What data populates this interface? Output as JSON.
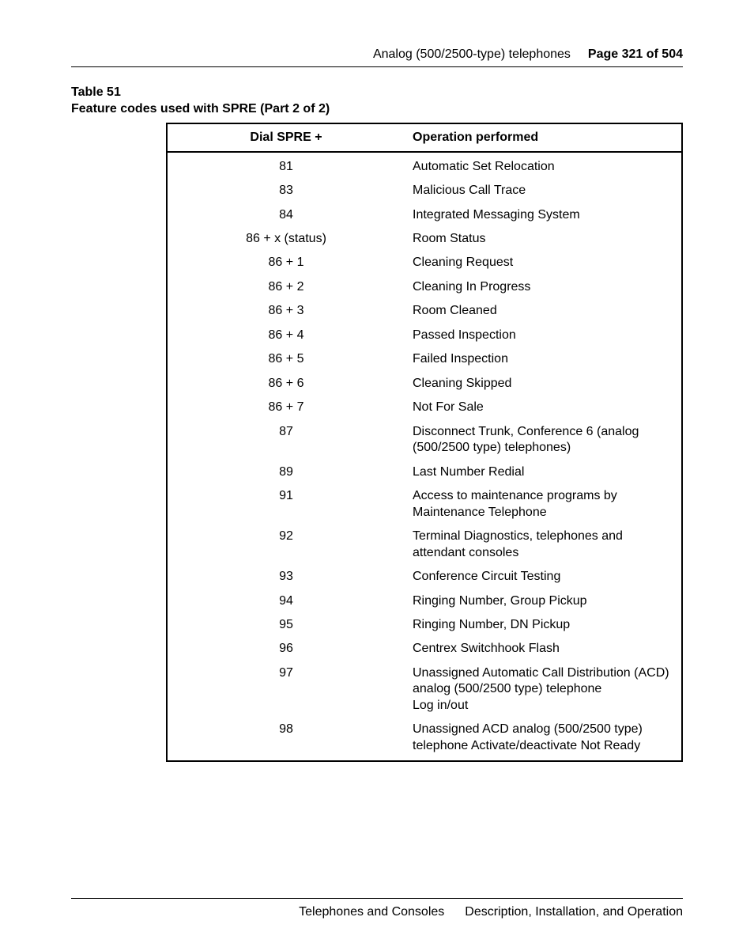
{
  "header": {
    "section_title": "Analog (500/2500-type) telephones",
    "page_label": "Page 321 of 504"
  },
  "caption": {
    "table_number": "Table 51",
    "table_title": "Feature codes used with SPRE (Part 2 of 2)"
  },
  "table": {
    "columns": [
      "Dial SPRE +",
      "Operation performed"
    ],
    "rows": [
      [
        "81",
        "Automatic Set Relocation"
      ],
      [
        "83",
        "Malicious Call Trace"
      ],
      [
        "84",
        "Integrated Messaging System"
      ],
      [
        "86 + x (status)",
        "Room Status"
      ],
      [
        "86 + 1",
        "Cleaning Request"
      ],
      [
        "86 + 2",
        "Cleaning In Progress"
      ],
      [
        "86 + 3",
        "Room Cleaned"
      ],
      [
        "86 + 4",
        "Passed Inspection"
      ],
      [
        "86 + 5",
        "Failed Inspection"
      ],
      [
        "86 + 6",
        "Cleaning Skipped"
      ],
      [
        "86 + 7",
        "Not For Sale"
      ],
      [
        "87",
        "Disconnect Trunk, Conference 6 (analog (500/2500 type) telephones)"
      ],
      [
        "89",
        "Last Number Redial"
      ],
      [
        "91",
        "Access to maintenance programs by Maintenance Telephone"
      ],
      [
        "92",
        "Terminal Diagnostics, telephones and attendant consoles"
      ],
      [
        "93",
        "Conference Circuit Testing"
      ],
      [
        "94",
        "Ringing Number, Group Pickup"
      ],
      [
        "95",
        "Ringing Number, DN Pickup"
      ],
      [
        "96",
        "Centrex Switchhook Flash"
      ],
      [
        "97",
        "Unassigned Automatic Call Distribution (ACD) analog (500/2500 type) telephone\nLog in/out"
      ],
      [
        "98",
        "Unassigned ACD analog (500/2500 type) telephone Activate/deactivate Not Ready"
      ]
    ]
  },
  "footer": {
    "left": "Telephones and Consoles",
    "right": "Description, Installation, and Operation"
  }
}
